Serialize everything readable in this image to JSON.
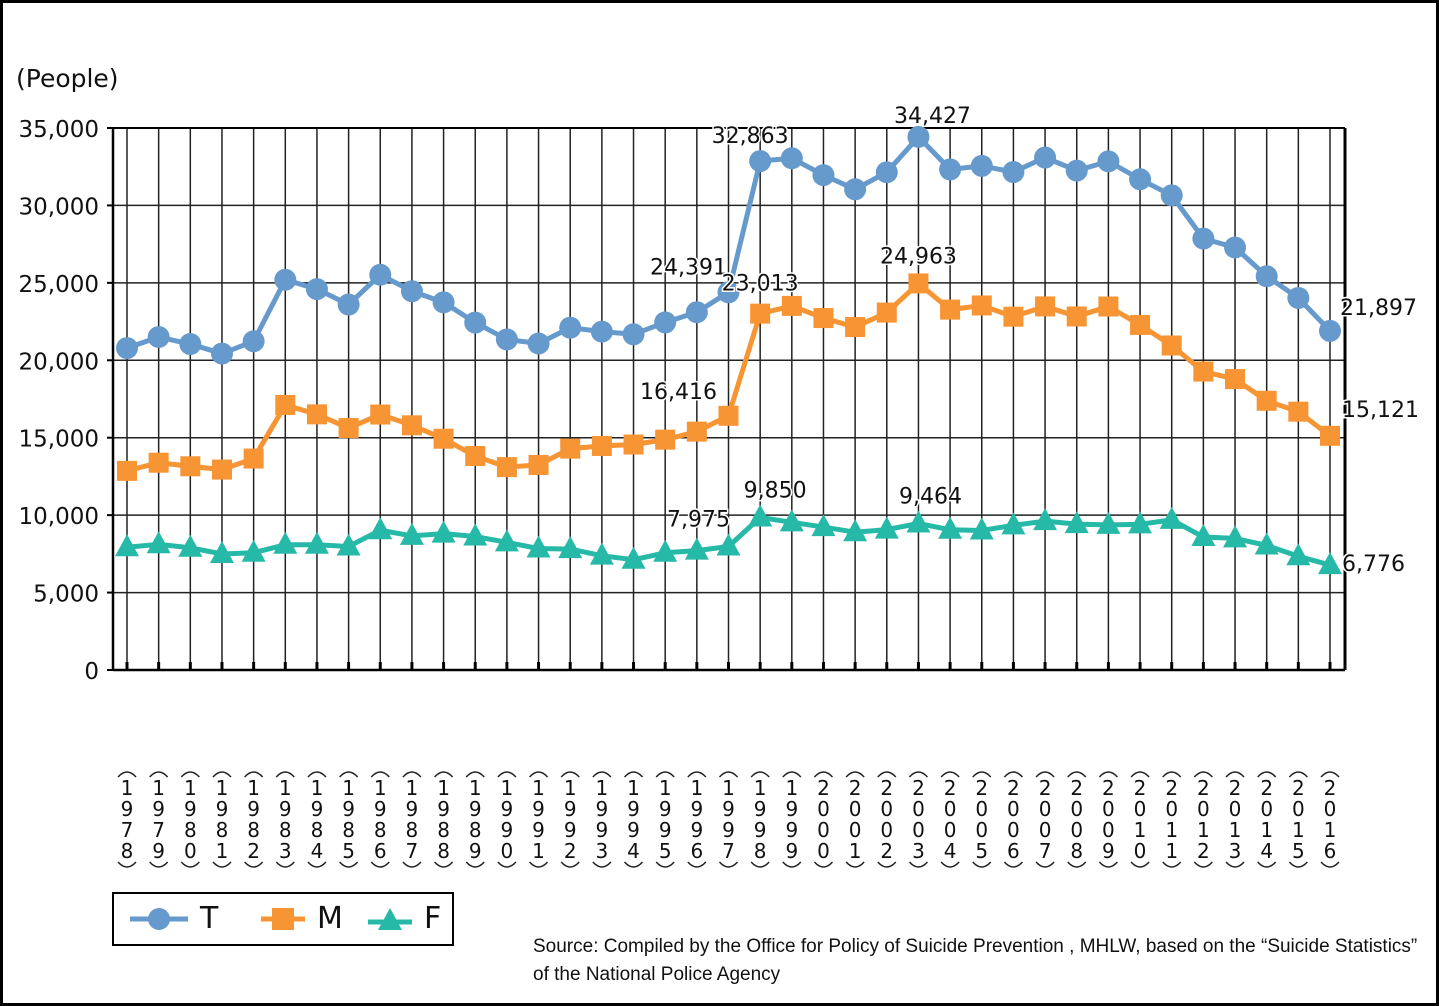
{
  "chart_data": {
    "type": "line",
    "title": "",
    "ylabel": "(People)",
    "xlabel": "",
    "ylim": [
      0,
      35000
    ],
    "yticks": [
      0,
      5000,
      10000,
      15000,
      20000,
      25000,
      30000,
      35000
    ],
    "ytick_labels": [
      "0",
      "5,000",
      "10,000",
      "15,000",
      "20,000",
      "25,000",
      "30,000",
      "35,000"
    ],
    "grid": true,
    "legend_position": "bottom-left",
    "x": [
      "1978",
      "1979",
      "1980",
      "1981",
      "1982",
      "1983",
      "1984",
      "1985",
      "1986",
      "1987",
      "1988",
      "1989",
      "1990",
      "1991",
      "1992",
      "1993",
      "1994",
      "1995",
      "1996",
      "1997",
      "1998",
      "1999",
      "2000",
      "2001",
      "2002",
      "2003",
      "2004",
      "2005",
      "2006",
      "2007",
      "2008",
      "2009",
      "2010",
      "2011",
      "2012",
      "2013",
      "2014",
      "2015",
      "2016"
    ],
    "series": [
      {
        "name": "T",
        "marker": "circle",
        "color": "#6699CC",
        "values": [
          20788,
          21503,
          21048,
          20434,
          21228,
          25202,
          24596,
          23599,
          25524,
          24460,
          23742,
          22436,
          21346,
          21084,
          22104,
          21851,
          21679,
          22445,
          23104,
          24391,
          32863,
          33048,
          31957,
          31042,
          32143,
          34427,
          32325,
          32552,
          32155,
          33093,
          32249,
          32845,
          31690,
          30651,
          27858,
          27283,
          25427,
          24025,
          21897
        ]
      },
      {
        "name": "M",
        "marker": "square",
        "color": "#F79433",
        "values": [
          12859,
          13386,
          13155,
          12942,
          13654,
          17116,
          16508,
          15624,
          16497,
          15802,
          14934,
          13818,
          13102,
          13242,
          14296,
          14468,
          14560,
          14874,
          15393,
          16416,
          23013,
          23512,
          22727,
          22144,
          23080,
          24963,
          23272,
          23540,
          22813,
          23478,
          22831,
          23472,
          22283,
          20955,
          19273,
          18787,
          17386,
          16681,
          15121
        ]
      },
      {
        "name": "F",
        "marker": "triangle",
        "color": "#26B9A7",
        "values": [
          7929,
          8117,
          7893,
          7492,
          7574,
          8086,
          8088,
          7975,
          9027,
          8658,
          8808,
          8618,
          8244,
          7842,
          7808,
          7383,
          7119,
          7571,
          7711,
          7975,
          9850,
          9536,
          9230,
          8898,
          9063,
          9464,
          9053,
          9012,
          9342,
          9615,
          9418,
          9373,
          9407,
          9696,
          8585,
          8496,
          8041,
          7344,
          6776
        ]
      }
    ],
    "annotations": [
      {
        "series": "T",
        "x": "1997",
        "text": "24,391"
      },
      {
        "series": "T",
        "x": "1998",
        "text": "32,863"
      },
      {
        "series": "T",
        "x": "2003",
        "text": "34,427"
      },
      {
        "series": "T",
        "x": "2016",
        "text": "21,897"
      },
      {
        "series": "M",
        "x": "1997",
        "text": "16,416"
      },
      {
        "series": "M",
        "x": "1998",
        "text": "23,013"
      },
      {
        "series": "M",
        "x": "2003",
        "text": "24,963"
      },
      {
        "series": "M",
        "x": "2016",
        "text": "15,121"
      },
      {
        "series": "F",
        "x": "1997",
        "text": "7,975"
      },
      {
        "series": "F",
        "x": "1998",
        "text": "9,850"
      },
      {
        "series": "F",
        "x": "2003",
        "text": "9,464"
      },
      {
        "series": "F",
        "x": "2016",
        "text": "6,776"
      }
    ]
  },
  "legend": [
    {
      "label": "T",
      "marker": "circle",
      "color": "#6699CC"
    },
    {
      "label": "M",
      "marker": "square",
      "color": "#F79433"
    },
    {
      "label": "F",
      "marker": "triangle",
      "color": "#26B9A7"
    }
  ],
  "unit_label": "(People)",
  "source": "Source: Compiled by the Office for Policy of Suicide Prevention , MHLW, based on the “Suicide Statistics” of the National Police Agency"
}
